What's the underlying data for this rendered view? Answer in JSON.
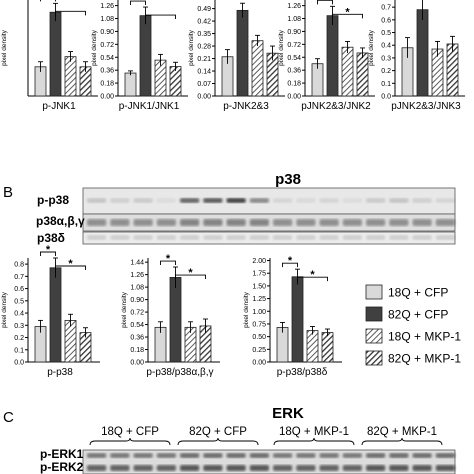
{
  "colors": {
    "light": "#d9d9d9",
    "dark": "#404040",
    "hatch_stroke": "#333333",
    "blot_bg": "#e6e6e6"
  },
  "panel_b": {
    "letter": "B",
    "title": "p38",
    "groups": [
      "18Q + CFP",
      "82Q + CFP",
      "18Q + MKP-1",
      "82Q + MKP-1"
    ],
    "rows": [
      "p-p38",
      "p38α,β,γ",
      "p38δ"
    ]
  },
  "panel_c": {
    "letter": "C",
    "title": "ERK",
    "groups": [
      "18Q + CFP",
      "82Q + CFP",
      "18Q + MKP-1",
      "82Q + MKP-1"
    ],
    "rows": [
      "p-ERK1",
      "p-ERK2"
    ]
  },
  "legend": {
    "items": [
      "18Q + CFP",
      "82Q + CFP",
      "18Q + MKP-1",
      "82Q + MKP-1"
    ]
  },
  "chart_data": [
    {
      "type": "bar",
      "title": "",
      "xlabel": "p-JNK1",
      "ylabel": "pixel density",
      "categories": [
        "18Q + CFP",
        "82Q + CFP",
        "18Q + MKP-1",
        "82Q + MKP-1"
      ],
      "values": [
        0.23,
        0.66,
        0.31,
        0.23
      ],
      "errors": [
        0.04,
        0.07,
        0.04,
        0.04
      ],
      "ylim": [
        0,
        0.78
      ],
      "yticks": [],
      "sig": [
        {
          "from": 0,
          "to": 1,
          "mark": "*"
        },
        {
          "from": 1,
          "to": 3,
          "mark": ""
        }
      ]
    },
    {
      "type": "bar",
      "title": "",
      "xlabel": "p-JNK1/JNK1",
      "ylabel": "pixel density",
      "categories": [
        "18Q + CFP",
        "82Q + CFP",
        "18Q + MKP-1",
        "82Q + MKP-1"
      ],
      "values": [
        0.32,
        1.12,
        0.5,
        0.41
      ],
      "errors": [
        0.03,
        0.12,
        0.08,
        0.06
      ],
      "ylim": [
        0,
        1.38
      ],
      "yticks": [
        "0.00",
        "0.18",
        "0.36",
        "0.54",
        "0.72",
        "0.90",
        "1.08",
        "1.26"
      ],
      "sig": [
        {
          "from": 0,
          "to": 1,
          "mark": "*"
        },
        {
          "from": 1,
          "to": 3,
          "mark": ""
        }
      ]
    },
    {
      "type": "bar",
      "title": "",
      "xlabel": "p-JNK2&3",
      "ylabel": "pixel density",
      "categories": [
        "18Q + CFP",
        "82Q + CFP",
        "18Q + MKP-1",
        "82Q + MKP-1"
      ],
      "values": [
        0.22,
        0.48,
        0.31,
        0.24
      ],
      "errors": [
        0.04,
        0.04,
        0.03,
        0.04
      ],
      "ylim": [
        0,
        0.555
      ],
      "yticks": [
        "0.00",
        "0.07",
        "0.14",
        "0.21",
        "0.28",
        "0.35",
        "0.42",
        "0.49"
      ],
      "sig": []
    },
    {
      "type": "bar",
      "title": "",
      "xlabel": "pJNK2&3/JNK2",
      "ylabel": "pixel density",
      "categories": [
        "18Q + CFP",
        "82Q + CFP",
        "18Q + MKP-1",
        "82Q + MKP-1"
      ],
      "values": [
        0.45,
        1.12,
        0.68,
        0.6
      ],
      "errors": [
        0.07,
        0.13,
        0.08,
        0.07
      ],
      "ylim": [
        0,
        1.38
      ],
      "yticks": [
        "0.00",
        "0.18",
        "0.36",
        "0.54",
        "0.72",
        "0.90",
        "1.08",
        "1.26"
      ],
      "sig": [
        {
          "from": 0,
          "to": 1,
          "mark": "*"
        },
        {
          "from": 1,
          "to": 3,
          "mark": "*"
        }
      ]
    },
    {
      "type": "bar",
      "title": "",
      "xlabel": "pJNK2&3/JNK3",
      "ylabel": "pixel density",
      "categories": [
        "18Q + CFP",
        "82Q + CFP",
        "18Q + MKP-1",
        "82Q + MKP-1"
      ],
      "values": [
        0.38,
        0.68,
        0.37,
        0.41
      ],
      "errors": [
        0.08,
        0.08,
        0.06,
        0.06
      ],
      "ylim": [
        0,
        0.78
      ],
      "yticks": [
        "0.0",
        "0.1",
        "0.2",
        "0.3",
        "0.4",
        "0.5",
        "0.6",
        "0.7"
      ],
      "sig": []
    },
    {
      "type": "bar",
      "title": "",
      "xlabel": "p-p38",
      "ylabel": "pixel density",
      "categories": [
        "18Q + CFP",
        "82Q + CFP",
        "18Q + MKP-1",
        "82Q + MKP-1"
      ],
      "values": [
        0.29,
        0.77,
        0.34,
        0.24
      ],
      "errors": [
        0.05,
        0.08,
        0.05,
        0.04
      ],
      "ylim": [
        0,
        0.85
      ],
      "yticks": [
        "0.0",
        "0.1",
        "0.2",
        "0.3",
        "0.4",
        "0.5",
        "0.6",
        "0.7",
        "0.8"
      ],
      "sig": [
        {
          "from": 0,
          "to": 1,
          "mark": "*"
        },
        {
          "from": 1,
          "to": 3,
          "mark": "*"
        }
      ]
    },
    {
      "type": "bar",
      "title": "",
      "xlabel": "p-p38/p38α,β,γ",
      "ylabel": "pixel density",
      "categories": [
        "18Q + CFP",
        "82Q + CFP",
        "18Q + MKP-1",
        "82Q + MKP-1"
      ],
      "values": [
        0.5,
        1.22,
        0.5,
        0.52
      ],
      "errors": [
        0.08,
        0.15,
        0.08,
        0.1
      ],
      "ylim": [
        0,
        1.5
      ],
      "yticks": [
        "0.00",
        "0.18",
        "0.36",
        "0.54",
        "0.72",
        "0.90",
        "1.08",
        "1.26",
        "1.44"
      ],
      "sig": [
        {
          "from": 0,
          "to": 1,
          "mark": "*"
        },
        {
          "from": 1,
          "to": 3,
          "mark": "*"
        }
      ]
    },
    {
      "type": "bar",
      "title": "",
      "xlabel": "p-p38/p38δ",
      "ylabel": "pixel density",
      "categories": [
        "18Q + CFP",
        "82Q + CFP",
        "18Q + MKP-1",
        "82Q + MKP-1"
      ],
      "values": [
        0.68,
        1.68,
        0.62,
        0.58
      ],
      "errors": [
        0.1,
        0.15,
        0.08,
        0.07
      ],
      "ylim": [
        0,
        2.05
      ],
      "yticks": [
        "0.00",
        "0.25",
        "0.50",
        "0.75",
        "1.00",
        "1.25",
        "1.50",
        "1.75",
        "2.00"
      ],
      "sig": [
        {
          "from": 0,
          "to": 1,
          "mark": "*"
        },
        {
          "from": 1,
          "to": 3,
          "mark": "*"
        }
      ]
    }
  ]
}
